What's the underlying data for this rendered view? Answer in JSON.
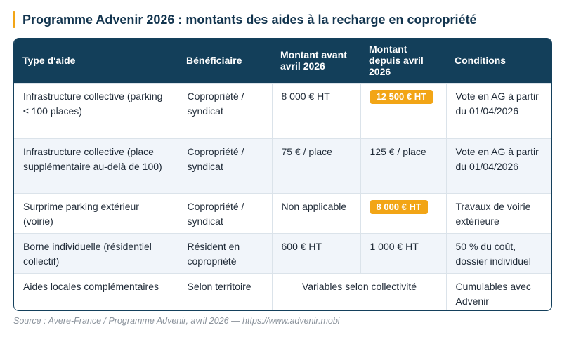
{
  "title": "Programme Advenir 2026 : montants des aides à la recharge en copropriété",
  "columns": [
    "Type d'aide",
    "Bénéficiaire",
    "Montant avant avril 2026",
    "Montant depuis avril 2026",
    "Conditions"
  ],
  "rows": [
    {
      "type": "Infrastructure collective (parking ≤ 100 places)",
      "beneficiaire": "Copropriété / syndicat",
      "avant": "8 000 € HT",
      "depuis": "12 500 € HT",
      "conditions": "Vote en AG à partir du 01/04/2026"
    },
    {
      "type": "Infrastructure collective (place supplémentaire au-delà de 100)",
      "beneficiaire": "Copropriété / syndicat",
      "avant": "75 € / place",
      "depuis": "125 € / place",
      "conditions": "Vote en AG à partir du 01/04/2026"
    },
    {
      "type": "Surprime parking extérieur (voirie)",
      "beneficiaire": "Copropriété / syndicat",
      "avant": "Non applicable",
      "depuis": "8 000 € HT",
      "conditions": "Travaux de voirie extérieure"
    },
    {
      "type": "Borne individuelle (résidentiel collectif)",
      "beneficiaire": "Résident en copropriété",
      "avant": "600 € HT",
      "depuis": "1 000 € HT",
      "conditions": "50 % du coût, dossier individuel"
    },
    {
      "type": "Aides locales complémentaires",
      "beneficiaire": "Selon territoire",
      "montant_merged": "Variables selon collectivité",
      "conditions": "Cumulables avec Advenir"
    }
  ],
  "source": "Source : Avere-France / Programme Advenir, avril 2026 — https://www.advenir.mobi",
  "colors": {
    "header_bg": "#133f5a",
    "accent": "#f2a516",
    "title": "#13354f",
    "row_alt": "#f1f5fa"
  }
}
